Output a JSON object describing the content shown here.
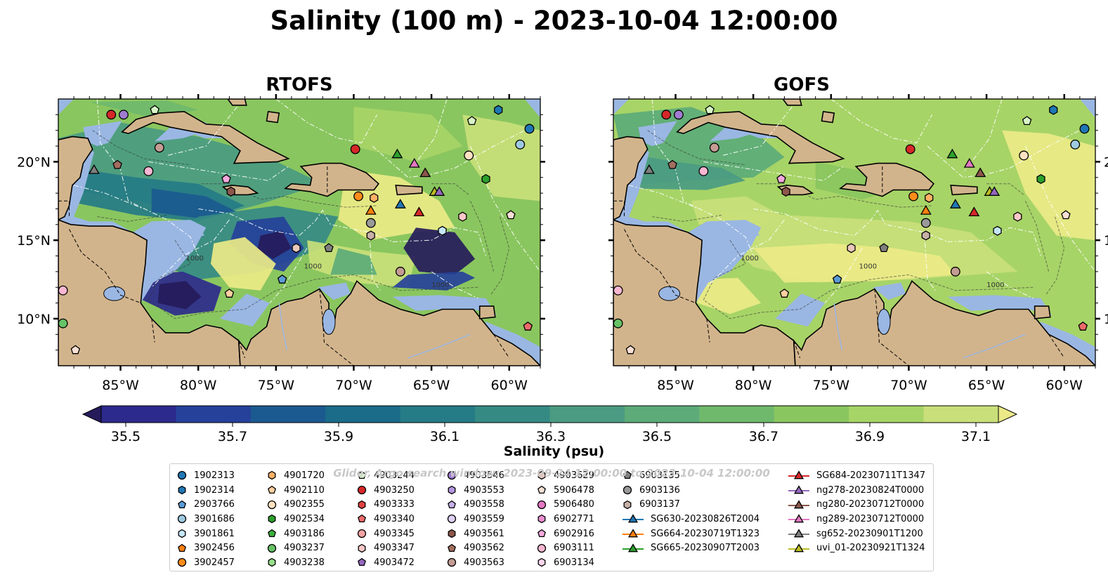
{
  "title": "Salinity (100 m) - 2023-10-04 12:00:00",
  "panels": [
    {
      "title": "RTOFS",
      "palette": "rtofs"
    },
    {
      "title": "GOFS",
      "palette": "gofs"
    }
  ],
  "map": {
    "lon_range": [
      -89,
      -58
    ],
    "lat_range": [
      7,
      24
    ],
    "lon_ticks": [
      "85°W",
      "80°W",
      "75°W",
      "70°W",
      "65°W",
      "60°W"
    ],
    "lat_ticks": [
      "20°N",
      "15°N",
      "10°N"
    ],
    "land_color": "#d2b48c",
    "shallow_water_color": "#9ab7e3",
    "contour_labels": [
      "1000",
      "1000",
      "1000"
    ]
  },
  "colorbar": {
    "label": "Salinity (psu)",
    "min": 35.5,
    "max": 37.1,
    "ticks": [
      "35.5",
      "35.7",
      "35.9",
      "36.1",
      "36.3",
      "36.5",
      "36.7",
      "36.9",
      "37.1"
    ],
    "extend": "both",
    "colors": [
      "#251b5b",
      "#2c2a8c",
      "#26419a",
      "#1b5a90",
      "#1a6c89",
      "#257b86",
      "#358a84",
      "#4a9b82",
      "#5cab78",
      "#6fb96c",
      "#8ac65f",
      "#a7d467",
      "#c9df79",
      "#ecea87"
    ]
  },
  "watermark": "Glider, Argo search window: 2023-09-24 12:00:00 to 2023-10-04 12:00:00",
  "legend": {
    "columns": [
      [
        {
          "label": "1902313",
          "marker": "circle",
          "color": "#1f77b4"
        },
        {
          "label": "1902314",
          "marker": "hexagon",
          "color": "#1f77b4"
        },
        {
          "label": "2903766",
          "marker": "pentagon",
          "color": "#5b9bd5"
        },
        {
          "label": "3901686",
          "marker": "circle",
          "color": "#9ecae1"
        },
        {
          "label": "3901861",
          "marker": "hexagon",
          "color": "#c6e6fa"
        },
        {
          "label": "3902456",
          "marker": "pentagon",
          "color": "#ff7f0e"
        },
        {
          "label": "3902457",
          "marker": "circle",
          "color": "#ff8c1a"
        }
      ],
      [
        {
          "label": "4901720",
          "marker": "hexagon",
          "color": "#ffb066"
        },
        {
          "label": "4902110",
          "marker": "pentagon",
          "color": "#ffd0a0"
        },
        {
          "label": "4902355",
          "marker": "circle",
          "color": "#ffe2c2"
        },
        {
          "label": "4902534",
          "marker": "hexagon",
          "color": "#2ca02c"
        },
        {
          "label": "4903186",
          "marker": "pentagon",
          "color": "#3cb03c"
        },
        {
          "label": "4903237",
          "marker": "circle",
          "color": "#66c266"
        },
        {
          "label": "4903238",
          "marker": "hexagon",
          "color": "#98df8a"
        }
      ],
      [
        {
          "label": "4903244",
          "marker": "pentagon",
          "color": "#d8f5c8"
        },
        {
          "label": "4903250",
          "marker": "circle",
          "color": "#d62728"
        },
        {
          "label": "4903333",
          "marker": "hexagon",
          "color": "#e04040"
        },
        {
          "label": "4903340",
          "marker": "pentagon",
          "color": "#ec6a6a"
        },
        {
          "label": "4903345",
          "marker": "circle",
          "color": "#f3a3a3"
        },
        {
          "label": "4903347",
          "marker": "hexagon",
          "color": "#fcc8c8"
        },
        {
          "label": "4903472",
          "marker": "pentagon",
          "color": "#9467bd"
        }
      ],
      [
        {
          "label": "4903546",
          "marker": "circle",
          "color": "#a07cd0"
        },
        {
          "label": "4903553",
          "marker": "hexagon",
          "color": "#b597e0"
        },
        {
          "label": "4903558",
          "marker": "pentagon",
          "color": "#c5b0ea"
        },
        {
          "label": "4903559",
          "marker": "circle",
          "color": "#ddd0f4"
        },
        {
          "label": "4903561",
          "marker": "hexagon",
          "color": "#8c564b"
        },
        {
          "label": "4903562",
          "marker": "pentagon",
          "color": "#a36e60"
        },
        {
          "label": "4903563",
          "marker": "circle",
          "color": "#c49c94"
        }
      ],
      [
        {
          "label": "4903629",
          "marker": "hexagon",
          "color": "#e8c7bc"
        },
        {
          "label": "5906478",
          "marker": "pentagon",
          "color": "#f8e0d4"
        },
        {
          "label": "5906480",
          "marker": "circle",
          "color": "#e377c2"
        },
        {
          "label": "6902771",
          "marker": "hexagon",
          "color": "#ec8fd0"
        },
        {
          "label": "6902916",
          "marker": "pentagon",
          "color": "#f3a8dc"
        },
        {
          "label": "6903111",
          "marker": "circle",
          "color": "#f7b6d2"
        },
        {
          "label": "6903134",
          "marker": "hexagon",
          "color": "#fdd5ec"
        }
      ],
      [
        {
          "label": "6903135",
          "marker": "pentagon",
          "color": "#7f7f7f"
        },
        {
          "label": "6903136",
          "marker": "circle",
          "color": "#999999"
        },
        {
          "label": "6903137",
          "marker": "hexagon",
          "color": "#c7b0a8"
        },
        {
          "label": "SG630-20230826T2004",
          "marker": "triangle-line",
          "color": "#1f77b4"
        },
        {
          "label": "SG664-20230719T1323",
          "marker": "triangle-line",
          "color": "#ff7f0e"
        },
        {
          "label": "SG665-20230907T2003",
          "marker": "triangle-line",
          "color": "#2ca02c"
        }
      ],
      [
        {
          "label": "SG684-20230711T1347",
          "marker": "triangle-line",
          "color": "#d62728"
        },
        {
          "label": "ng278-20230824T0000",
          "marker": "triangle-line",
          "color": "#9467bd"
        },
        {
          "label": "ng280-20230712T0000",
          "marker": "triangle-line",
          "color": "#8c564b"
        },
        {
          "label": "ng289-20230712T0000",
          "marker": "triangle-line",
          "color": "#e377c2"
        },
        {
          "label": "sg652-20230901T1200",
          "marker": "triangle-line",
          "color": "#7f7f7f"
        },
        {
          "label": "uvi_01-20230921T1324",
          "marker": "triangle-line",
          "color": "#bcbd22"
        }
      ]
    ]
  },
  "observations": [
    {
      "label": "4903250",
      "lon": -85.6,
      "lat": 23.0
    },
    {
      "label": "4903546",
      "lon": -84.8,
      "lat": 23.0
    },
    {
      "label": "4903244",
      "lon": -82.8,
      "lat": 23.3
    },
    {
      "label": "1902314",
      "lon": -60.7,
      "lat": 23.3
    },
    {
      "label": "1902313",
      "lon": -58.7,
      "lat": 22.1
    },
    {
      "label": "3901686",
      "lon": -59.3,
      "lat": 21.1
    },
    {
      "label": "4903244",
      "lon": -62.4,
      "lat": 22.6
    },
    {
      "label": "4903563",
      "lon": -82.5,
      "lat": 20.9
    },
    {
      "label": "4902355",
      "lon": -62.6,
      "lat": 20.4
    },
    {
      "label": "6903111",
      "lon": -83.2,
      "lat": 19.4
    },
    {
      "label": "4903562",
      "lon": -85.2,
      "lat": 19.8
    },
    {
      "label": "6902916",
      "lon": -78.2,
      "lat": 18.9
    },
    {
      "label": "4903561",
      "lon": -77.9,
      "lat": 18.1
    },
    {
      "label": "4903250",
      "lon": -69.9,
      "lat": 20.8
    },
    {
      "label": "4902534",
      "lon": -61.5,
      "lat": 18.9
    },
    {
      "label": "3902457",
      "lon": -69.7,
      "lat": 17.8
    },
    {
      "label": "4901720",
      "lon": -68.7,
      "lat": 17.7
    },
    {
      "label": "6903136",
      "lon": -68.9,
      "lat": 16.1
    },
    {
      "label": "6903137",
      "lon": -68.9,
      "lat": 15.3
    },
    {
      "label": "4903347",
      "lon": -63.0,
      "lat": 16.5
    },
    {
      "label": "5906478",
      "lon": -59.9,
      "lat": 16.6
    },
    {
      "label": "3901861",
      "lon": -64.3,
      "lat": 15.6
    },
    {
      "label": "4903629",
      "lon": -73.7,
      "lat": 14.5
    },
    {
      "label": "6903135",
      "lon": -71.6,
      "lat": 14.5
    },
    {
      "label": "2903766",
      "lon": -74.6,
      "lat": 12.5
    },
    {
      "label": "4903563",
      "lon": -67.0,
      "lat": 13.0
    },
    {
      "label": "4902110",
      "lon": -78.0,
      "lat": 11.6
    },
    {
      "label": "4903340",
      "lon": -58.8,
      "lat": 9.5
    },
    {
      "label": "6903111",
      "lon": -88.7,
      "lat": 11.8
    },
    {
      "label": "4903237",
      "lon": -88.7,
      "lat": 9.7
    },
    {
      "label": "5906478",
      "lon": -87.9,
      "lat": 8.0
    }
  ],
  "gliders": [
    {
      "label": "sg652-20230901T1200",
      "lon": -86.7,
      "lat": 19.5
    },
    {
      "label": "SG665-20230907T2003",
      "lon": -67.2,
      "lat": 20.5
    },
    {
      "label": "ng289-20230712T0000",
      "lon": -66.1,
      "lat": 19.9
    },
    {
      "label": "ng280-20230712T0000",
      "lon": -65.4,
      "lat": 19.3
    },
    {
      "label": "SG630-20230826T2004",
      "lon": -67.0,
      "lat": 17.3
    },
    {
      "label": "SG664-20230719T1323",
      "lon": -68.9,
      "lat": 16.9
    },
    {
      "label": "SG684-20230711T1347",
      "lon": -65.8,
      "lat": 16.8
    },
    {
      "label": "uvi_01-20230921T1324",
      "lon": -64.8,
      "lat": 18.1
    },
    {
      "label": "ng278-20230824T0000",
      "lon": -64.5,
      "lat": 18.1
    }
  ]
}
